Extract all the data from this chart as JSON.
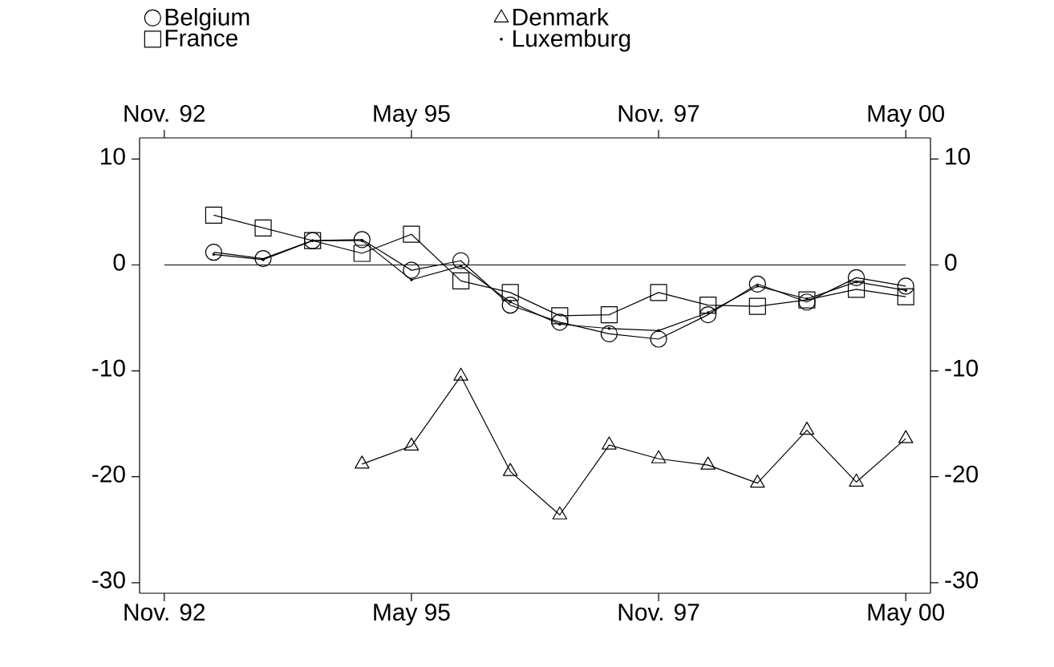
{
  "chart_data": {
    "type": "line",
    "x": [
      "1993-05",
      "1993-11",
      "1994-05",
      "1994-11",
      "1995-05",
      "1995-11",
      "1996-05",
      "1996-11",
      "1997-05",
      "1997-11",
      "1998-05",
      "1998-11",
      "1999-05",
      "1999-11",
      "2000-05"
    ],
    "series": [
      {
        "name": "Belgium",
        "color": "#000000",
        "marker": "circle",
        "values": [
          1.2,
          0.6,
          2.3,
          2.4,
          -0.5,
          0.4,
          -3.8,
          -5.4,
          -6.5,
          -7.0,
          -4.7,
          -1.8,
          -3.5,
          -1.2,
          -2.0
        ]
      },
      {
        "name": "Denmark",
        "color": "#000000",
        "marker": "triangle",
        "x": [
          "1994-11",
          "1995-05",
          "1995-11",
          "1996-05",
          "1996-11",
          "1997-05",
          "1997-11",
          "1998-05",
          "1998-11",
          "1999-05",
          "1999-11",
          "2000-05"
        ],
        "values": [
          -18.8,
          -17.1,
          -10.5,
          -19.5,
          -23.6,
          -17.0,
          -18.3,
          -18.9,
          -20.6,
          -15.6,
          -20.5,
          -16.4
        ]
      },
      {
        "name": "France",
        "color": "#000000",
        "marker": "square",
        "values": [
          4.7,
          3.5,
          2.3,
          1.1,
          2.9,
          -1.5,
          -2.6,
          -4.8,
          -4.7,
          -2.6,
          -3.8,
          -3.9,
          -3.3,
          -2.3,
          -3.0
        ]
      },
      {
        "name": "Luxemburg",
        "color": "#000000",
        "marker": "point",
        "values": [
          1.0,
          0.5,
          2.3,
          2.3,
          -1.4,
          -0.1,
          -3.5,
          -5.6,
          -6.0,
          -6.2,
          -4.5,
          -2.0,
          -3.2,
          -1.6,
          -2.4
        ]
      }
    ],
    "xlim": [
      "1992-08",
      "2000-08"
    ],
    "xticks": [
      {
        "value": "1992-11",
        "label": "Nov. 92"
      },
      {
        "value": "1995-05",
        "label": "May 95"
      },
      {
        "value": "1997-11",
        "label": "Nov. 97"
      },
      {
        "value": "2000-05",
        "label": "May 00"
      }
    ],
    "x2lim": [
      "1992-08",
      "2000-08"
    ],
    "x2ticks": [
      {
        "value": "1992-11",
        "label": "Nov. 92"
      },
      {
        "value": "1995-05",
        "label": "May 95"
      },
      {
        "value": "1997-11",
        "label": "Nov. 97"
      },
      {
        "value": "2000-05",
        "label": "May 00"
      }
    ],
    "ylim": [
      -31,
      12
    ],
    "yticks": [
      -30,
      -20,
      -10,
      0,
      10
    ],
    "y2lim": [
      -31,
      12
    ],
    "y2ticks": [
      -30,
      -20,
      -10,
      0,
      10
    ],
    "ref_lines": [
      {
        "axis": "y",
        "value": 0,
        "color": "#000000"
      }
    ],
    "grid": false,
    "legend": "top",
    "line_style": "solid"
  }
}
